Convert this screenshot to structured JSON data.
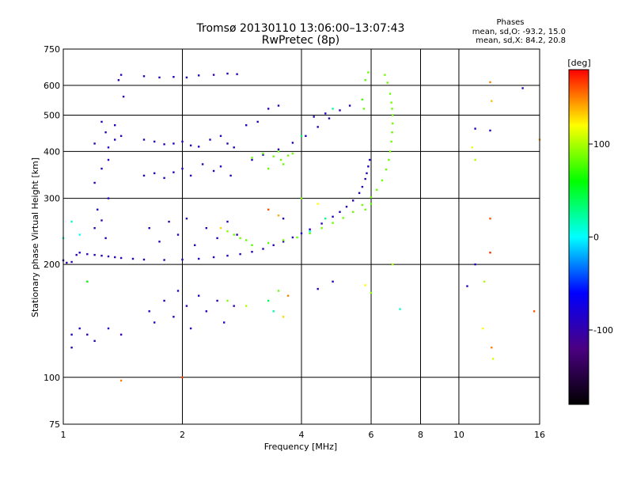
{
  "chart_data": {
    "type": "scatter",
    "title": "Tromsø 20130110 13:06:00–13:07:43",
    "subtitle": "RwPretec (8p)",
    "stats": {
      "heading": "Phases",
      "line1": "mean, sd,O: -93.2, 15.0",
      "line2": "mean, sd,X:  84.2, 20.8"
    },
    "xlabel": "Frequency [MHz]",
    "ylabel": "Stationary phase Virtual Height [km]",
    "x_scale": "log",
    "y_scale": "log",
    "xlim": [
      1,
      16
    ],
    "ylim": [
      75,
      750
    ],
    "grid": true,
    "x_ticks": [
      {
        "value": 1,
        "label": "1"
      },
      {
        "value": 2,
        "label": "2"
      },
      {
        "value": 4,
        "label": "4"
      },
      {
        "value": 6,
        "label": "6"
      },
      {
        "value": 8,
        "label": "8"
      },
      {
        "value": 10,
        "label": "10"
      },
      {
        "value": 16,
        "label": "16"
      }
    ],
    "y_ticks": [
      {
        "value": 75,
        "label": "75"
      },
      {
        "value": 100,
        "label": "100"
      },
      {
        "value": 200,
        "label": "200"
      },
      {
        "value": 300,
        "label": "300"
      },
      {
        "value": 400,
        "label": "400"
      },
      {
        "value": 500,
        "label": "500"
      },
      {
        "value": 600,
        "label": "600"
      },
      {
        "value": 750,
        "label": "750"
      }
    ],
    "colorbar": {
      "label": "[deg]",
      "range": [
        -180,
        180
      ],
      "ticks": [
        {
          "value": 100,
          "label": "100"
        },
        {
          "value": 0,
          "label": "0"
        },
        {
          "value": -100,
          "label": "-100"
        }
      ],
      "colors": [
        "#000000",
        "#4b0082",
        "#0000ff",
        "#00ffff",
        "#00ff00",
        "#ffff00",
        "#ff0000"
      ]
    },
    "series": [
      {
        "mode": "O",
        "points": [
          [
            1.0,
            205,
            -95
          ],
          [
            1.02,
            202,
            -95
          ],
          [
            1.05,
            203,
            -96
          ],
          [
            1.08,
            212,
            -97
          ],
          [
            1.1,
            215,
            -90
          ],
          [
            1.15,
            213,
            -92
          ],
          [
            1.2,
            212,
            -93
          ],
          [
            1.25,
            211,
            -94
          ],
          [
            1.3,
            210,
            -95
          ],
          [
            1.35,
            209,
            -95
          ],
          [
            1.4,
            208,
            -96
          ],
          [
            1.5,
            207,
            -95
          ],
          [
            1.6,
            206,
            -94
          ],
          [
            1.8,
            205.5,
            -95
          ],
          [
            2.0,
            206,
            -93
          ],
          [
            2.2,
            207,
            -92
          ],
          [
            2.4,
            209,
            -94
          ],
          [
            2.6,
            211,
            -95
          ],
          [
            2.8,
            213,
            -93
          ],
          [
            3.0,
            216,
            -92
          ],
          [
            3.2,
            220,
            -95
          ],
          [
            3.4,
            225,
            -93
          ],
          [
            3.6,
            230,
            -94
          ],
          [
            3.8,
            236,
            -92
          ],
          [
            4.0,
            242,
            -93
          ],
          [
            4.2,
            248,
            -95
          ],
          [
            4.5,
            257,
            -92
          ],
          [
            4.8,
            268,
            -94
          ],
          [
            5.0,
            276,
            -93
          ],
          [
            5.2,
            285,
            -92
          ],
          [
            5.4,
            296,
            -95
          ],
          [
            5.6,
            310,
            -93
          ],
          [
            5.7,
            322,
            -92
          ],
          [
            5.8,
            338,
            -94
          ],
          [
            5.85,
            350,
            -93
          ],
          [
            5.9,
            365,
            -92
          ],
          [
            5.95,
            380,
            -95
          ],
          [
            3.0,
            380,
            -90
          ],
          [
            3.2,
            392,
            -92
          ],
          [
            3.5,
            405,
            -94
          ],
          [
            3.8,
            422,
            -93
          ],
          [
            4.1,
            440,
            -92
          ],
          [
            4.4,
            465,
            -95
          ],
          [
            4.7,
            490,
            -93
          ],
          [
            5.0,
            515,
            -92
          ],
          [
            1.2,
            250,
            -95
          ],
          [
            1.25,
            262,
            -100
          ],
          [
            1.22,
            280,
            -92
          ],
          [
            1.28,
            235,
            -90
          ],
          [
            1.3,
            300,
            -95
          ],
          [
            1.2,
            330,
            -97
          ],
          [
            1.25,
            360,
            -93
          ],
          [
            1.3,
            380,
            -96
          ],
          [
            1.2,
            420,
            -94
          ],
          [
            1.28,
            450,
            -95
          ],
          [
            1.35,
            470,
            -92
          ],
          [
            1.4,
            440,
            -97
          ],
          [
            1.35,
            430,
            -95
          ],
          [
            1.25,
            480,
            -93
          ],
          [
            1.3,
            410,
            -96
          ],
          [
            1.38,
            620,
            -100
          ],
          [
            1.4,
            640,
            -95
          ],
          [
            1.42,
            560,
            -98
          ],
          [
            1.6,
            635,
            -95
          ],
          [
            1.75,
            630,
            -96
          ],
          [
            1.9,
            632,
            -94
          ],
          [
            2.05,
            630,
            -95
          ],
          [
            2.2,
            638,
            -93
          ],
          [
            2.4,
            640,
            -97
          ],
          [
            2.6,
            645,
            -95
          ],
          [
            2.75,
            643,
            -96
          ],
          [
            1.6,
            430,
            -95
          ],
          [
            1.7,
            425,
            -94
          ],
          [
            1.8,
            418,
            -96
          ],
          [
            1.9,
            420,
            -93
          ],
          [
            2.0,
            425,
            -95
          ],
          [
            2.1,
            415,
            -97
          ],
          [
            2.2,
            412,
            -94
          ],
          [
            2.35,
            430,
            -95
          ],
          [
            2.5,
            440,
            -93
          ],
          [
            2.6,
            420,
            -96
          ],
          [
            2.7,
            410,
            -94
          ],
          [
            1.6,
            345,
            -95
          ],
          [
            1.7,
            350,
            -96
          ],
          [
            1.8,
            340,
            -93
          ],
          [
            1.9,
            352,
            -95
          ],
          [
            2.0,
            360,
            -94
          ],
          [
            2.1,
            345,
            -97
          ],
          [
            2.25,
            370,
            -95
          ],
          [
            2.4,
            355,
            -93
          ],
          [
            2.5,
            365,
            -96
          ],
          [
            2.65,
            345,
            -94
          ],
          [
            1.65,
            250,
            -92
          ],
          [
            1.75,
            230,
            -95
          ],
          [
            1.85,
            260,
            -100
          ],
          [
            1.95,
            240,
            -96
          ],
          [
            2.05,
            265,
            -95
          ],
          [
            2.15,
            225,
            -94
          ],
          [
            2.3,
            250,
            -97
          ],
          [
            2.45,
            235,
            -93
          ],
          [
            2.6,
            260,
            -95
          ],
          [
            2.75,
            240,
            -96
          ],
          [
            1.65,
            150,
            -95
          ],
          [
            1.7,
            140,
            -97
          ],
          [
            1.8,
            160,
            -96
          ],
          [
            1.9,
            145,
            -94
          ],
          [
            1.95,
            170,
            -95
          ],
          [
            2.05,
            155,
            -98
          ],
          [
            2.1,
            135,
            -95
          ],
          [
            2.2,
            165,
            -93
          ],
          [
            2.3,
            150,
            -96
          ],
          [
            2.45,
            160,
            -95
          ],
          [
            2.55,
            140,
            -94
          ],
          [
            2.7,
            155,
            -97
          ],
          [
            1.05,
            130,
            -92
          ],
          [
            1.1,
            135,
            -95
          ],
          [
            1.15,
            130,
            -96
          ],
          [
            1.2,
            125,
            -93
          ],
          [
            1.3,
            135,
            -95
          ],
          [
            1.4,
            130,
            -97
          ],
          [
            1.05,
            120,
            -94
          ],
          [
            2.9,
            470,
            -95
          ],
          [
            3.1,
            480,
            -93
          ],
          [
            3.3,
            520,
            -96
          ],
          [
            3.5,
            530,
            -94
          ],
          [
            4.3,
            495,
            -95
          ],
          [
            4.6,
            505,
            -93
          ],
          [
            5.3,
            530,
            -92
          ],
          [
            11.0,
            460,
            -90
          ],
          [
            12.0,
            455,
            -92
          ],
          [
            11.0,
            200,
            -95
          ],
          [
            14.5,
            590,
            -96
          ],
          [
            10.5,
            175,
            -90
          ],
          [
            3.6,
            265,
            -92
          ],
          [
            4.4,
            172,
            -95
          ],
          [
            4.8,
            180,
            -93
          ]
        ]
      },
      {
        "mode": "X",
        "points": [
          [
            3.0,
            225,
            80
          ],
          [
            3.3,
            228,
            82
          ],
          [
            3.6,
            232,
            84
          ],
          [
            3.9,
            236,
            85
          ],
          [
            4.2,
            242,
            83
          ],
          [
            4.5,
            250,
            86
          ],
          [
            4.8,
            258,
            84
          ],
          [
            5.1,
            266,
            85
          ],
          [
            5.4,
            276,
            84
          ],
          [
            5.7,
            288,
            86
          ],
          [
            6.0,
            302,
            85
          ],
          [
            6.2,
            316,
            83
          ],
          [
            6.4,
            335,
            86
          ],
          [
            6.55,
            358,
            85
          ],
          [
            6.65,
            380,
            84
          ],
          [
            6.7,
            400,
            86
          ],
          [
            6.75,
            425,
            85
          ],
          [
            6.78,
            450,
            83
          ],
          [
            6.8,
            475,
            86
          ],
          [
            6.8,
            500,
            85
          ],
          [
            6.78,
            520,
            84
          ],
          [
            6.75,
            540,
            86
          ],
          [
            6.7,
            570,
            85
          ],
          [
            6.6,
            610,
            83
          ],
          [
            6.5,
            640,
            86
          ],
          [
            5.9,
            650,
            84
          ],
          [
            5.8,
            620,
            80
          ],
          [
            5.7,
            550,
            76
          ],
          [
            5.75,
            520,
            85
          ],
          [
            6.0,
            290,
            82
          ],
          [
            5.8,
            280,
            86
          ],
          [
            2.5,
            250,
            130
          ],
          [
            2.6,
            245,
            90
          ],
          [
            2.7,
            240,
            85
          ],
          [
            2.8,
            235,
            88
          ],
          [
            2.9,
            232,
            83
          ],
          [
            3.0,
            385,
            86
          ],
          [
            3.2,
            395,
            85
          ],
          [
            3.4,
            388,
            84
          ],
          [
            3.55,
            380,
            86
          ],
          [
            3.7,
            390,
            85
          ],
          [
            3.5,
            400,
            83
          ],
          [
            3.8,
            395,
            86
          ],
          [
            3.6,
            370,
            84
          ],
          [
            3.3,
            360,
            85
          ],
          [
            3.3,
            160,
            40
          ],
          [
            3.4,
            150,
            20
          ],
          [
            3.5,
            170,
            85
          ],
          [
            3.6,
            145,
            130
          ],
          [
            3.7,
            165,
            150
          ],
          [
            2.6,
            160,
            90
          ],
          [
            2.9,
            155,
            100
          ],
          [
            3.3,
            280,
            160
          ],
          [
            3.5,
            270,
            140
          ],
          [
            4.0,
            300,
            90
          ],
          [
            4.4,
            290,
            120
          ],
          [
            1.0,
            235,
            20
          ],
          [
            1.05,
            260,
            10
          ],
          [
            1.1,
            240,
            0
          ],
          [
            1.15,
            180,
            60
          ],
          [
            4.2,
            245,
            10
          ],
          [
            4.6,
            265,
            30
          ],
          [
            4.8,
            520,
            20
          ],
          [
            4.0,
            440,
            40
          ],
          [
            6.8,
            200,
            100
          ],
          [
            7.1,
            152,
            10
          ],
          [
            6.0,
            168,
            90
          ],
          [
            5.8,
            176,
            120
          ],
          [
            12.0,
            612,
            150
          ],
          [
            12.1,
            545,
            135
          ],
          [
            12.0,
            265,
            160
          ],
          [
            12.0,
            215,
            170
          ],
          [
            11.5,
            135,
            120
          ],
          [
            12.2,
            112,
            110
          ],
          [
            12.1,
            120,
            150
          ],
          [
            11.0,
            380,
            100
          ],
          [
            10.8,
            410,
            115
          ],
          [
            11.6,
            180,
            100
          ],
          [
            15.5,
            150,
            160
          ],
          [
            16.0,
            430,
            140
          ],
          [
            1.4,
            98,
            150
          ],
          [
            2.0,
            100,
            165
          ]
        ]
      }
    ]
  }
}
